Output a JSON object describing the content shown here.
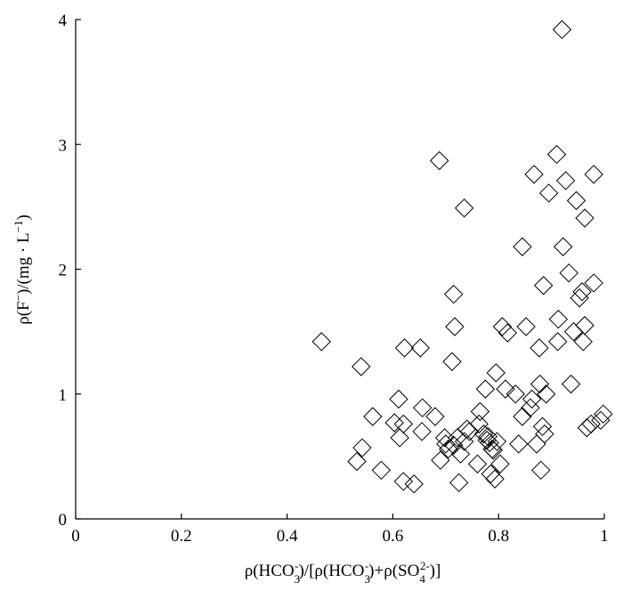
{
  "chart_data": {
    "type": "scatter",
    "title": "",
    "marker": "diamond-open",
    "marker_color": "#000000",
    "xlim": [
      0,
      1
    ],
    "ylim": [
      0,
      4
    ],
    "xticks": [
      0,
      0.2,
      0.4,
      0.6,
      0.8,
      1
    ],
    "xtick_labels": [
      "0",
      "0.2",
      "0.4",
      "0.6",
      "0.8",
      "1"
    ],
    "yticks": [
      0,
      1,
      2,
      3,
      4
    ],
    "ytick_labels": [
      "0",
      "1",
      "2",
      "3",
      "4"
    ],
    "grid": false,
    "xlabel": {
      "prefix": "ρ(HCO",
      "sub1": "3",
      "sup1": "-",
      "mid1": ")/[ρ(HCO",
      "sub2": "3",
      "sup2": "-",
      "mid2": ")+ρ(SO",
      "sub3": "4",
      "sup3": "2-",
      "suffix": ")]"
    },
    "ylabel": {
      "prefix": "ρ(F",
      "sup1": "−",
      "mid": ")/(mg · L",
      "sup2": "−1",
      "suffix": ")"
    },
    "points": [
      [
        0.465,
        1.42
      ],
      [
        0.54,
        1.22
      ],
      [
        0.532,
        0.46
      ],
      [
        0.542,
        0.57
      ],
      [
        0.562,
        0.82
      ],
      [
        0.578,
        0.39
      ],
      [
        0.603,
        0.77
      ],
      [
        0.611,
        0.96
      ],
      [
        0.613,
        0.65
      ],
      [
        0.62,
        0.76
      ],
      [
        0.62,
        0.3
      ],
      [
        0.622,
        1.37
      ],
      [
        0.64,
        0.28
      ],
      [
        0.652,
        1.37
      ],
      [
        0.656,
        0.89
      ],
      [
        0.655,
        0.7
      ],
      [
        0.68,
        0.82
      ],
      [
        0.688,
        2.87
      ],
      [
        0.69,
        0.47
      ],
      [
        0.698,
        0.65
      ],
      [
        0.7,
        0.6
      ],
      [
        0.705,
        0.56
      ],
      [
        0.712,
        1.26
      ],
      [
        0.715,
        0.59
      ],
      [
        0.715,
        1.8
      ],
      [
        0.717,
        1.54
      ],
      [
        0.722,
        0.65
      ],
      [
        0.725,
        0.29
      ],
      [
        0.728,
        0.52
      ],
      [
        0.735,
        2.49
      ],
      [
        0.735,
        0.62
      ],
      [
        0.74,
        0.72
      ],
      [
        0.745,
        0.7
      ],
      [
        0.76,
        0.44
      ],
      [
        0.763,
        0.76
      ],
      [
        0.765,
        0.86
      ],
      [
        0.772,
        0.68
      ],
      [
        0.775,
        1.04
      ],
      [
        0.778,
        0.63
      ],
      [
        0.78,
        0.66
      ],
      [
        0.783,
        0.61
      ],
      [
        0.785,
        0.36
      ],
      [
        0.788,
        0.56
      ],
      [
        0.79,
        0.55
      ],
      [
        0.793,
        0.32
      ],
      [
        0.795,
        1.17
      ],
      [
        0.797,
        0.62
      ],
      [
        0.803,
        0.44
      ],
      [
        0.807,
        1.54
      ],
      [
        0.813,
        1.04
      ],
      [
        0.817,
        1.49
      ],
      [
        0.832,
        1.0
      ],
      [
        0.838,
        0.6
      ],
      [
        0.845,
        2.18
      ],
      [
        0.845,
        0.82
      ],
      [
        0.852,
        1.54
      ],
      [
        0.86,
        0.89
      ],
      [
        0.863,
        0.96
      ],
      [
        0.867,
        2.76
      ],
      [
        0.872,
        0.6
      ],
      [
        0.877,
        1.37
      ],
      [
        0.878,
        1.08
      ],
      [
        0.88,
        0.39
      ],
      [
        0.883,
        0.74
      ],
      [
        0.885,
        1.87
      ],
      [
        0.887,
        0.68
      ],
      [
        0.89,
        1.0
      ],
      [
        0.895,
        2.61
      ],
      [
        0.91,
        2.92
      ],
      [
        0.912,
        1.42
      ],
      [
        0.913,
        1.6
      ],
      [
        0.92,
        3.92
      ],
      [
        0.922,
        2.18
      ],
      [
        0.927,
        2.71
      ],
      [
        0.933,
        1.97
      ],
      [
        0.937,
        1.08
      ],
      [
        0.942,
        1.5
      ],
      [
        0.947,
        2.55
      ],
      [
        0.953,
        1.77
      ],
      [
        0.958,
        1.82
      ],
      [
        0.96,
        1.42
      ],
      [
        0.963,
        2.41
      ],
      [
        0.963,
        1.55
      ],
      [
        0.967,
        0.73
      ],
      [
        0.975,
        0.76
      ],
      [
        0.98,
        1.89
      ],
      [
        0.98,
        2.76
      ],
      [
        0.993,
        0.79
      ],
      [
        0.998,
        0.84
      ]
    ]
  }
}
